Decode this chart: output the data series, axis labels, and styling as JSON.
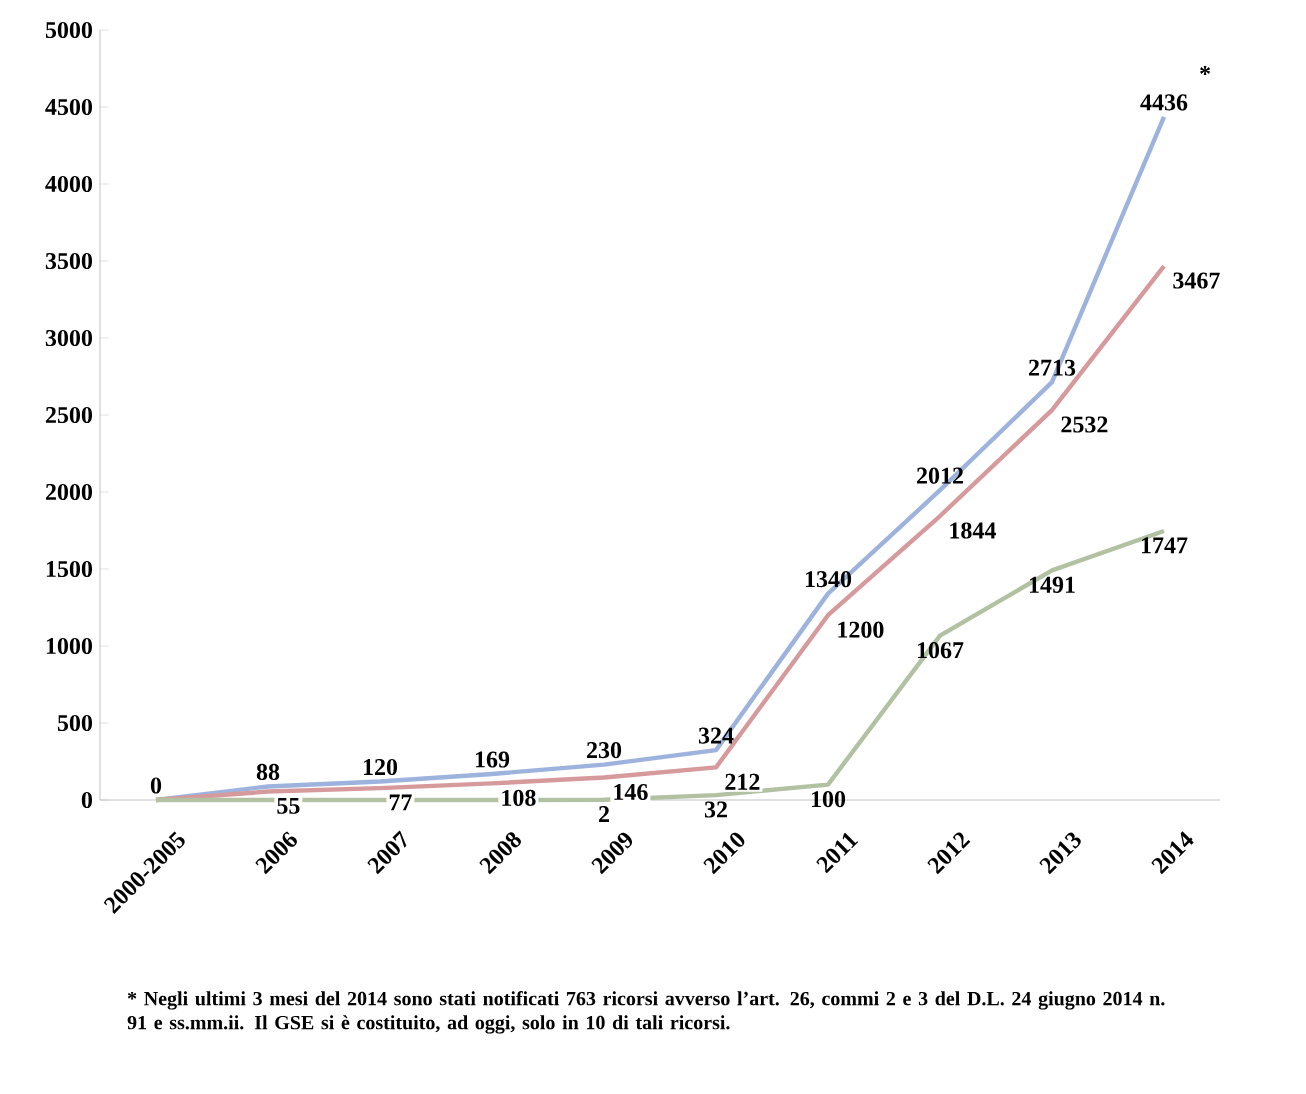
{
  "chart_data": {
    "type": "line",
    "categories": [
      "2000-2005",
      "2006",
      "2007",
      "2008",
      "2009",
      "2010",
      "2011",
      "2012",
      "2013",
      "2014"
    ],
    "series": [
      {
        "color": "#9db3de",
        "values": [
          0,
          88,
          120,
          169,
          230,
          324,
          1340,
          2012,
          2713,
          4436
        ],
        "value_labels": [
          "0",
          "88",
          "120",
          "169",
          "230",
          "324",
          "1340",
          "2012",
          "2713",
          "4436"
        ]
      },
      {
        "color": "#d79a9c",
        "values": [
          0,
          55,
          77,
          108,
          146,
          212,
          1200,
          1844,
          2532,
          3467
        ],
        "value_labels": [
          null,
          "55",
          "77",
          "108",
          "146",
          "212",
          "1200",
          "1844",
          "2532",
          "3467"
        ]
      },
      {
        "color": "#b3c1a3",
        "values": [
          0,
          0,
          0,
          0,
          2,
          32,
          100,
          1067,
          1491,
          1747
        ],
        "value_labels": [
          null,
          null,
          null,
          null,
          "2",
          "32",
          "100",
          "1067",
          "1491",
          "1747"
        ]
      }
    ],
    "ylim": [
      0,
      5000
    ],
    "yticks": [
      0,
      500,
      1000,
      1500,
      2000,
      2500,
      3000,
      3500,
      4000,
      4500,
      5000
    ],
    "grid": false,
    "marker": "none",
    "line_style": "solid",
    "annotations": [
      {
        "text": "*",
        "x": "2014",
        "y": 4436
      },
      "* Negli ultimi 3 mesi del 2014  sono stati notificati 763 ricorsi avverso l’art. 26, commi 2 e 3 del D.L. 24 giugno 2014 n. 91 e ss.mm.ii. Il GSE si è costituito, ad oggi, solo in 10 di tali ricorsi."
    ]
  }
}
